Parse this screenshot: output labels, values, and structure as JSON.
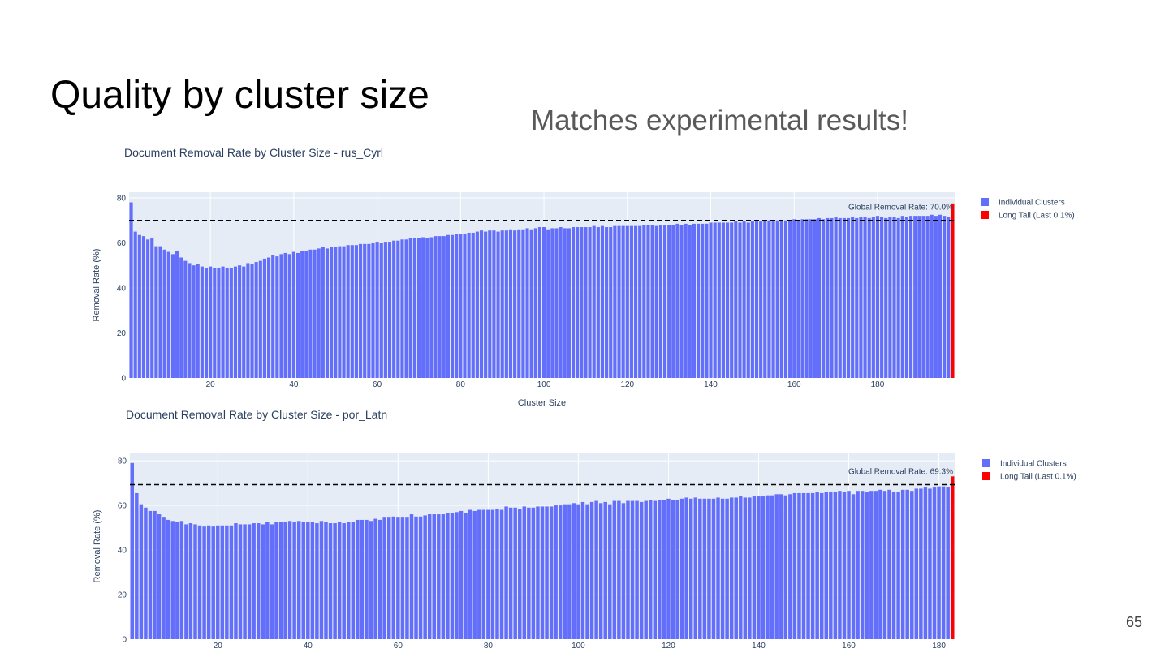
{
  "slide": {
    "title": "Quality by cluster size",
    "subtitle": "Matches experimental results!",
    "page_number": 65
  },
  "chart_data": [
    {
      "type": "bar",
      "title": "Document Removal Rate by Cluster Size - rus_Cyrl",
      "x_label": "Cluster Size",
      "y_label": "Removal Rate (%)",
      "xlim": [
        0.5,
        198.5
      ],
      "xticks": [
        20,
        40,
        60,
        80,
        100,
        120,
        140,
        160,
        180
      ],
      "ylim": [
        0,
        82.5
      ],
      "yticks": [
        0,
        20,
        40,
        60,
        80
      ],
      "grid": true,
      "legend": "right",
      "reference_line": {
        "value": 70.0,
        "label": "Global Removal Rate: 70.0%"
      },
      "series": [
        {
          "name": "Individual Clusters",
          "color": "#636efa",
          "x": [
            1,
            2,
            3,
            4,
            5,
            6,
            7,
            8,
            9,
            10,
            11,
            12,
            13,
            14,
            15,
            16,
            17,
            18,
            19,
            20,
            21,
            22,
            23,
            24,
            25,
            26,
            27,
            28,
            29,
            30,
            31,
            32,
            33,
            34,
            35,
            36,
            37,
            38,
            39,
            40,
            41,
            42,
            43,
            44,
            45,
            46,
            47,
            48,
            49,
            50,
            51,
            52,
            53,
            54,
            55,
            56,
            57,
            58,
            59,
            60,
            61,
            62,
            63,
            64,
            65,
            66,
            67,
            68,
            69,
            70,
            71,
            72,
            73,
            74,
            75,
            76,
            77,
            78,
            79,
            80,
            81,
            82,
            83,
            84,
            85,
            86,
            87,
            88,
            89,
            90,
            91,
            92,
            93,
            94,
            95,
            96,
            97,
            98,
            99,
            100,
            101,
            102,
            103,
            104,
            105,
            106,
            107,
            108,
            109,
            110,
            111,
            112,
            113,
            114,
            115,
            116,
            117,
            118,
            119,
            120,
            121,
            122,
            123,
            124,
            125,
            126,
            127,
            128,
            129,
            130,
            131,
            132,
            133,
            134,
            135,
            136,
            137,
            138,
            139,
            140,
            141,
            142,
            143,
            144,
            145,
            146,
            147,
            148,
            149,
            150,
            151,
            152,
            153,
            154,
            155,
            156,
            157,
            158,
            159,
            160,
            161,
            162,
            163,
            164,
            165,
            166,
            167,
            168,
            169,
            170,
            171,
            172,
            173,
            174,
            175,
            176,
            177,
            178,
            179,
            180,
            181,
            182,
            183,
            184,
            185,
            186,
            187,
            188,
            189,
            190,
            191,
            192,
            193,
            194,
            195,
            196,
            197
          ],
          "values": [
            78,
            65,
            63.5,
            63,
            61.5,
            62,
            58.5,
            58.5,
            57,
            56,
            55,
            56.5,
            53.5,
            52,
            51,
            50,
            50.5,
            49.5,
            49,
            49.5,
            49,
            49,
            49.5,
            49,
            49,
            49.5,
            50,
            49.5,
            51,
            50.5,
            51.5,
            52,
            53,
            53.5,
            54.5,
            54,
            55,
            55.5,
            55,
            56,
            55.5,
            56.5,
            56.5,
            57,
            57,
            57.5,
            58,
            57.5,
            58,
            58,
            58.5,
            58.5,
            59,
            59,
            59,
            59.5,
            59.5,
            59.5,
            60,
            60.5,
            60,
            60.5,
            60.5,
            61,
            61,
            61.5,
            61.5,
            62,
            62,
            62,
            62.5,
            62,
            62.5,
            63,
            63,
            63,
            63.5,
            63.5,
            64,
            64,
            64,
            64.5,
            64.5,
            65,
            65.5,
            65,
            65.5,
            65.5,
            65,
            65.5,
            65.5,
            66,
            65.5,
            66,
            66,
            66.5,
            66,
            66.5,
            67,
            67,
            66,
            66.5,
            66.5,
            67,
            66.5,
            66.5,
            67,
            67,
            67,
            67,
            67,
            67.5,
            67,
            67.5,
            67,
            67,
            67.5,
            67.5,
            67.5,
            67.5,
            67.5,
            67.5,
            67.5,
            68,
            68,
            68,
            67.5,
            68,
            68,
            68,
            68,
            68.5,
            68,
            68.5,
            68,
            68.5,
            68.5,
            68.5,
            68.5,
            69,
            69,
            69,
            69,
            69,
            69,
            69.5,
            69,
            69.5,
            69,
            69.5,
            69.5,
            69.5,
            70,
            70,
            69.5,
            70,
            70,
            70,
            70,
            70.5,
            70,
            70.5,
            70.5,
            70.5,
            70.5,
            71,
            70.5,
            71,
            71,
            71.5,
            71,
            71,
            71,
            71.5,
            71,
            71.5,
            71.5,
            71,
            71.5,
            72,
            71.5,
            71,
            71.5,
            71.5,
            71,
            72,
            71.5,
            72,
            72,
            72,
            72,
            72,
            72.5,
            72,
            72.5,
            72,
            71.5
          ]
        },
        {
          "name": "Long Tail (Last 0.1%)",
          "color": "#ff0000",
          "x": [
            198
          ],
          "values": [
            77.5
          ]
        }
      ]
    },
    {
      "type": "bar",
      "title": "Document Removal Rate by Cluster Size - por_Latn",
      "y_label": "Removal Rate (%)",
      "xlim": [
        0.5,
        183.5
      ],
      "xticks": [
        20,
        40,
        60,
        80,
        100,
        120,
        140,
        160,
        180
      ],
      "ylim": [
        0,
        83.3
      ],
      "yticks": [
        0,
        20,
        40,
        60,
        80
      ],
      "grid": true,
      "legend": "right",
      "reference_line": {
        "value": 69.3,
        "label": "Global Removal Rate: 69.3%"
      },
      "series": [
        {
          "name": "Individual Clusters",
          "color": "#636efa",
          "x": [
            1,
            2,
            3,
            4,
            5,
            6,
            7,
            8,
            9,
            10,
            11,
            12,
            13,
            14,
            15,
            16,
            17,
            18,
            19,
            20,
            21,
            22,
            23,
            24,
            25,
            26,
            27,
            28,
            29,
            30,
            31,
            32,
            33,
            34,
            35,
            36,
            37,
            38,
            39,
            40,
            41,
            42,
            43,
            44,
            45,
            46,
            47,
            48,
            49,
            50,
            51,
            52,
            53,
            54,
            55,
            56,
            57,
            58,
            59,
            60,
            61,
            62,
            63,
            64,
            65,
            66,
            67,
            68,
            69,
            70,
            71,
            72,
            73,
            74,
            75,
            76,
            77,
            78,
            79,
            80,
            81,
            82,
            83,
            84,
            85,
            86,
            87,
            88,
            89,
            90,
            91,
            92,
            93,
            94,
            95,
            96,
            97,
            98,
            99,
            100,
            101,
            102,
            103,
            104,
            105,
            106,
            107,
            108,
            109,
            110,
            111,
            112,
            113,
            114,
            115,
            116,
            117,
            118,
            119,
            120,
            121,
            122,
            123,
            124,
            125,
            126,
            127,
            128,
            129,
            130,
            131,
            132,
            133,
            134,
            135,
            136,
            137,
            138,
            139,
            140,
            141,
            142,
            143,
            144,
            145,
            146,
            147,
            148,
            149,
            150,
            151,
            152,
            153,
            154,
            155,
            156,
            157,
            158,
            159,
            160,
            161,
            162,
            163,
            164,
            165,
            166,
            167,
            168,
            169,
            170,
            171,
            172,
            173,
            174,
            175,
            176,
            177,
            178,
            179,
            180,
            181,
            182
          ],
          "values": [
            79,
            65.5,
            60.5,
            59,
            57.5,
            57.5,
            56,
            54.5,
            53.5,
            53,
            52.5,
            53,
            51.5,
            52,
            51.5,
            51,
            50.5,
            51,
            50.5,
            51,
            51,
            51,
            51,
            52,
            51.5,
            51.5,
            51.5,
            52,
            52,
            51.5,
            52.5,
            51.5,
            52.5,
            52.5,
            52.5,
            53,
            52.5,
            53,
            52.5,
            52.5,
            52.5,
            52,
            53,
            52.5,
            52,
            52,
            52.5,
            52,
            52.5,
            52.5,
            53.5,
            53.5,
            53.5,
            53,
            54,
            53.5,
            54.5,
            54.5,
            55,
            54.5,
            54.5,
            54.5,
            56,
            55,
            55,
            55.5,
            56,
            56,
            56,
            56,
            56.5,
            56.5,
            57,
            57.5,
            56.5,
            58,
            57.5,
            58,
            58,
            58,
            58,
            58.5,
            58,
            59.5,
            59,
            59,
            58.5,
            59.5,
            59,
            59,
            59.5,
            59.5,
            59.5,
            59.5,
            60,
            60,
            60.5,
            60.5,
            61,
            60.5,
            61.5,
            60.5,
            61.5,
            62,
            61,
            61.5,
            60.5,
            62,
            62,
            61,
            62,
            62,
            62,
            61.5,
            62,
            62.5,
            62,
            62.5,
            62.5,
            63,
            62.5,
            62.5,
            63,
            63.5,
            63,
            63.5,
            63,
            63,
            63,
            63,
            63.5,
            63,
            63,
            63.5,
            63.5,
            64,
            63.5,
            63.5,
            64,
            64,
            64,
            64.5,
            64.5,
            65,
            65,
            64.5,
            65,
            65.5,
            65.5,
            65.5,
            65.5,
            65.5,
            66,
            65.5,
            66,
            66,
            66,
            66.5,
            66,
            66.5,
            65,
            66.5,
            66.5,
            66,
            66.5,
            66.5,
            67,
            66.5,
            67,
            66,
            66,
            67,
            67,
            66.5,
            67.5,
            67.5,
            68,
            67.5,
            68,
            68.5,
            68.5,
            68
          ]
        },
        {
          "name": "Long Tail (Last 0.1%)",
          "color": "#ff0000",
          "x": [
            183
          ],
          "values": [
            73
          ]
        }
      ]
    }
  ]
}
